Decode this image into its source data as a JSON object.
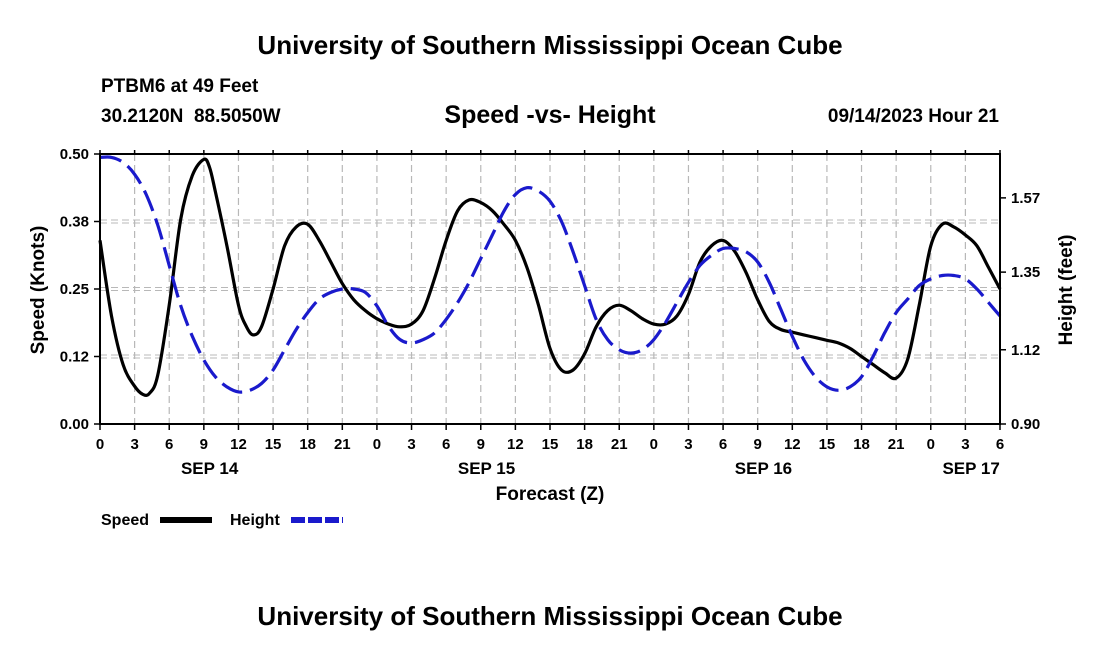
{
  "header": {
    "title_top": "University of Southern Mississippi Ocean Cube",
    "station": "PTBM6 at 49 Feet",
    "coords": "30.2120N  88.5050W",
    "date": "09/14/2023 Hour 21",
    "title_bottom": "University of Southern Mississippi Ocean Cube"
  },
  "chart_data": {
    "type": "line",
    "title": "Speed -vs- Height",
    "xlabel": "Forecast (Z)",
    "ylabel": "Speed (Knots)",
    "y2label": "Height (feet)",
    "x_range": [
      0,
      78
    ],
    "x": [
      0,
      3,
      6,
      9,
      12,
      15,
      18,
      21,
      24,
      27,
      30,
      33,
      36,
      39,
      42,
      45,
      48,
      51,
      54,
      57,
      60,
      63,
      66,
      69,
      72,
      75,
      78
    ],
    "x_tick_labels": [
      "0",
      "3",
      "6",
      "9",
      "12",
      "15",
      "18",
      "21",
      "0",
      "3",
      "6",
      "9",
      "12",
      "15",
      "18",
      "21",
      "0",
      "3",
      "6",
      "9",
      "12",
      "15",
      "18",
      "21",
      "0",
      "3",
      "6"
    ],
    "date_labels": [
      {
        "label": "SEP 14",
        "x": 9.5
      },
      {
        "label": "SEP 15",
        "x": 33.5
      },
      {
        "label": "SEP 16",
        "x": 57.5
      },
      {
        "label": "SEP 17",
        "x": 75.5
      }
    ],
    "ylim": [
      0,
      0.5
    ],
    "y_ticks": [
      0,
      0.125,
      0.25,
      0.375,
      0.5
    ],
    "y_tick_labels": [
      "0.00",
      "0.12",
      "0.25",
      "0.38",
      "0.50"
    ],
    "y2lim": [
      0.9,
      1.7
    ],
    "y2_ticks": [
      0.9,
      1.12,
      1.35,
      1.57
    ],
    "y2_tick_labels": [
      "0.90",
      "1.12",
      "1.35",
      "1.57"
    ],
    "series": [
      {
        "name": "Speed",
        "color": "#000000",
        "style": "solid",
        "axis": "left",
        "x": [
          0,
          1,
          2,
          3,
          3.7,
          4.3,
          5,
          6,
          7,
          8,
          9,
          9.5,
          10,
          11,
          12,
          12.7,
          13.3,
          14,
          15,
          16,
          17,
          18,
          19,
          20,
          21,
          22,
          23,
          24,
          25,
          26,
          27,
          28,
          29,
          30,
          31,
          32,
          33,
          34,
          35,
          36,
          37,
          38,
          39,
          40,
          41,
          42,
          43,
          44,
          45,
          46,
          47,
          48,
          49,
          50,
          51,
          52,
          53,
          54,
          55,
          56,
          57,
          58,
          59,
          60,
          61,
          62,
          63,
          64,
          65,
          66,
          67,
          68,
          69,
          70,
          71,
          72,
          73,
          74,
          75,
          76,
          77,
          78
        ],
        "values": [
          0.34,
          0.2,
          0.11,
          0.07,
          0.055,
          0.057,
          0.09,
          0.22,
          0.38,
          0.46,
          0.49,
          0.475,
          0.43,
          0.33,
          0.22,
          0.18,
          0.165,
          0.18,
          0.25,
          0.33,
          0.365,
          0.37,
          0.34,
          0.3,
          0.26,
          0.23,
          0.21,
          0.195,
          0.185,
          0.18,
          0.185,
          0.21,
          0.27,
          0.34,
          0.395,
          0.415,
          0.41,
          0.395,
          0.37,
          0.34,
          0.29,
          0.22,
          0.14,
          0.1,
          0.1,
          0.13,
          0.18,
          0.21,
          0.22,
          0.21,
          0.195,
          0.185,
          0.185,
          0.2,
          0.24,
          0.3,
          0.33,
          0.34,
          0.32,
          0.28,
          0.23,
          0.19,
          0.175,
          0.17,
          0.165,
          0.16,
          0.155,
          0.15,
          0.14,
          0.125,
          0.11,
          0.095,
          0.085,
          0.12,
          0.22,
          0.33,
          0.37,
          0.365,
          0.35,
          0.33,
          0.29,
          0.25
        ]
      },
      {
        "name": "Height",
        "color": "#1a1acc",
        "style": "dashed",
        "axis": "right",
        "x": [
          0,
          1,
          2,
          3,
          4,
          5,
          6,
          7,
          8,
          9,
          10,
          11,
          12,
          13,
          14,
          15,
          16,
          17,
          18,
          19,
          20,
          21,
          22,
          23,
          24,
          25,
          26,
          27,
          28,
          29,
          30,
          31,
          32,
          33,
          34,
          35,
          36,
          37,
          38,
          39,
          40,
          41,
          42,
          43,
          44,
          45,
          46,
          47,
          48,
          49,
          50,
          51,
          52,
          53,
          54,
          55,
          56,
          57,
          58,
          59,
          60,
          61,
          62,
          63,
          64,
          65,
          66,
          67,
          68,
          69,
          70,
          71,
          72,
          73,
          74,
          75,
          76,
          77,
          78
        ],
        "values": [
          1.69,
          1.69,
          1.675,
          1.64,
          1.58,
          1.49,
          1.37,
          1.25,
          1.16,
          1.09,
          1.04,
          1.01,
          0.995,
          1.0,
          1.02,
          1.06,
          1.12,
          1.18,
          1.23,
          1.27,
          1.29,
          1.3,
          1.3,
          1.29,
          1.25,
          1.19,
          1.15,
          1.14,
          1.15,
          1.17,
          1.21,
          1.26,
          1.32,
          1.39,
          1.46,
          1.53,
          1.58,
          1.6,
          1.59,
          1.56,
          1.5,
          1.41,
          1.31,
          1.21,
          1.15,
          1.12,
          1.11,
          1.12,
          1.15,
          1.2,
          1.26,
          1.32,
          1.37,
          1.4,
          1.42,
          1.42,
          1.41,
          1.38,
          1.32,
          1.24,
          1.16,
          1.09,
          1.04,
          1.01,
          1.0,
          1.01,
          1.04,
          1.1,
          1.17,
          1.23,
          1.27,
          1.31,
          1.33,
          1.34,
          1.34,
          1.33,
          1.3,
          1.26,
          1.22
        ]
      }
    ]
  },
  "legend": {
    "items": [
      {
        "label": "Speed",
        "color": "#000000",
        "style": "solid"
      },
      {
        "label": "Height",
        "color": "#1a1acc",
        "style": "dashed"
      }
    ]
  }
}
